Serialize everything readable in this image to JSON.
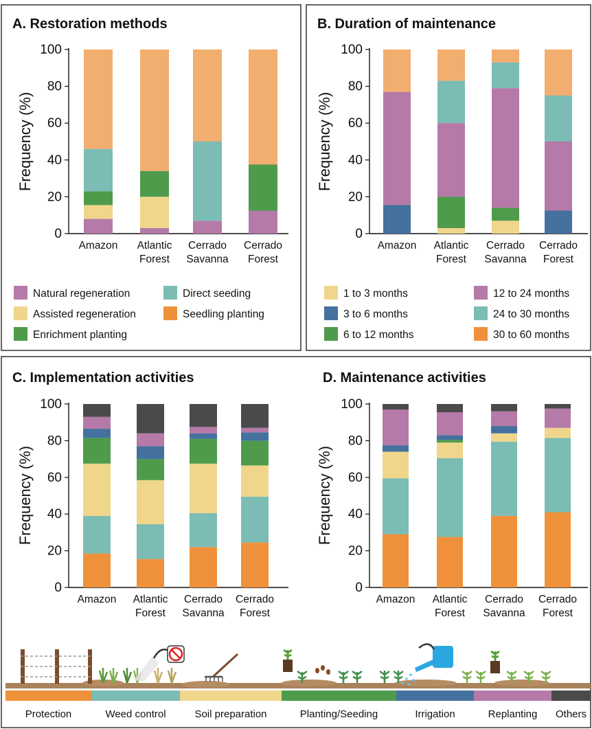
{
  "colors": {
    "natural_regeneration": "#b57aa8",
    "assisted_regeneration": "#efd68b",
    "enrichment_planting": "#4e9b4c",
    "direct_seeding": "#7bbcb4",
    "seedling_planting": "#f2ae6f",
    "m_1_3": "#efd68b",
    "m_3_6": "#44719e",
    "m_6_12": "#4e9b4c",
    "m_12_24": "#b57aa8",
    "m_24_30": "#7bbcb4",
    "m_30_60": "#f2ae6f",
    "protection": "#ef913a",
    "weed_control": "#7bbcb4",
    "soil_preparation": "#efd68b",
    "planting_seeding": "#4e9b4c",
    "irrigation": "#44719e",
    "replanting": "#b57aa8",
    "others": "#4a4a4a"
  },
  "chart_data": [
    {
      "type": "bar",
      "stacked": true,
      "title": "A. Restoration methods",
      "ylabel": "Frequency (%)",
      "ylim": [
        0,
        100
      ],
      "yticks": [
        "0",
        "20",
        "40",
        "60",
        "80",
        "100"
      ],
      "categories": [
        [
          "Amazon"
        ],
        [
          "Atlantic",
          "Forest"
        ],
        [
          "Cerrado",
          "Savanna"
        ],
        [
          "Cerrado",
          "Forest"
        ]
      ],
      "series": [
        {
          "name": "Natural regeneration",
          "color_key": "natural_regeneration",
          "values": [
            8,
            3,
            7,
            12.5
          ]
        },
        {
          "name": "Assisted regeneration",
          "color_key": "assisted_regeneration",
          "values": [
            7.5,
            17,
            0,
            0
          ]
        },
        {
          "name": "Enrichment planting",
          "color_key": "enrichment_planting",
          "values": [
            7.5,
            14,
            0,
            25
          ]
        },
        {
          "name": "Direct seeding",
          "color_key": "direct_seeding",
          "values": [
            23,
            0,
            43,
            0
          ]
        },
        {
          "name": "Seedling planting",
          "color_key": "seedling_planting",
          "values": [
            54,
            66,
            50,
            62.5
          ]
        }
      ],
      "legend": {
        "placement": "bottom",
        "items": [
          {
            "label": "Natural regeneration",
            "color_key": "natural_regeneration"
          },
          {
            "label": "Direct seeding",
            "color_key": "direct_seeding"
          },
          {
            "label": "Assisted regeneration",
            "color_key": "assisted_regeneration"
          },
          {
            "label": "Seedling planting",
            "color_key": "protection"
          },
          {
            "label": "Enrichment planting",
            "color_key": "enrichment_planting"
          }
        ]
      }
    },
    {
      "type": "bar",
      "stacked": true,
      "title": "B. Duration of maintenance",
      "ylabel": "Frequency (%)",
      "ylim": [
        0,
        100
      ],
      "yticks": [
        "0",
        "20",
        "40",
        "60",
        "80",
        "100"
      ],
      "categories": [
        [
          "Amazon"
        ],
        [
          "Atlantic",
          "Forest"
        ],
        [
          "Cerrado",
          "Savanna"
        ],
        [
          "Cerrado",
          "Forest"
        ]
      ],
      "series": [
        {
          "name": "1 to 3 months",
          "color_key": "m_1_3",
          "values": [
            0,
            3,
            7,
            0
          ]
        },
        {
          "name": "3 to 6 months",
          "color_key": "m_3_6",
          "values": [
            15.5,
            0,
            0,
            12.5
          ]
        },
        {
          "name": "6 to 12 months",
          "color_key": "m_6_12",
          "values": [
            0,
            17,
            7,
            0
          ]
        },
        {
          "name": "12 to 24 months",
          "color_key": "m_12_24",
          "values": [
            61.5,
            40,
            65,
            37.5
          ]
        },
        {
          "name": "24 to 30 months",
          "color_key": "m_24_30",
          "values": [
            0,
            23,
            14,
            25
          ]
        },
        {
          "name": "30 to 60 months",
          "color_key": "m_30_60",
          "values": [
            23,
            17,
            7,
            25
          ]
        }
      ],
      "legend": {
        "placement": "bottom",
        "items": [
          {
            "label": "1 to 3 months",
            "color_key": "m_1_3"
          },
          {
            "label": "12 to 24 months",
            "color_key": "m_12_24"
          },
          {
            "label": "3 to 6 months",
            "color_key": "m_3_6"
          },
          {
            "label": "24 to 30 months",
            "color_key": "m_24_30"
          },
          {
            "label": "6 to 12 months",
            "color_key": "m_6_12"
          },
          {
            "label": "30 to 60 months",
            "color_key": "protection"
          }
        ]
      }
    },
    {
      "type": "bar",
      "stacked": true,
      "title": "C. Implementation activities",
      "ylabel": "Frequency (%)",
      "ylim": [
        0,
        100
      ],
      "yticks": [
        "0",
        "20",
        "40",
        "60",
        "80",
        "100"
      ],
      "categories": [
        [
          "Amazon"
        ],
        [
          "Atlantic",
          "Forest"
        ],
        [
          "Cerrado",
          "Savanna"
        ],
        [
          "Cerrado",
          "Forest"
        ]
      ],
      "series": [
        {
          "name": "Protection",
          "color_key": "protection",
          "values": [
            18.5,
            15.5,
            22,
            24.5
          ]
        },
        {
          "name": "Weed control",
          "color_key": "weed_control",
          "values": [
            20.5,
            19,
            18.5,
            25
          ]
        },
        {
          "name": "Soil preparation",
          "color_key": "soil_preparation",
          "values": [
            28.5,
            24,
            27,
            17
          ]
        },
        {
          "name": "Planting/Seeding",
          "color_key": "planting_seeding",
          "values": [
            14,
            11.5,
            13.5,
            13.5
          ]
        },
        {
          "name": "Irrigation",
          "color_key": "irrigation",
          "values": [
            5,
            7,
            3,
            4.5
          ]
        },
        {
          "name": "Replanting",
          "color_key": "replanting",
          "values": [
            6.5,
            7,
            3.5,
            2.5
          ]
        },
        {
          "name": "Others",
          "color_key": "others",
          "values": [
            7,
            16,
            12.5,
            13
          ]
        }
      ]
    },
    {
      "type": "bar",
      "stacked": true,
      "title": "D. Maintenance activities",
      "ylabel": "Frequency (%)",
      "ylim": [
        0,
        100
      ],
      "yticks": [
        "0",
        "20",
        "40",
        "60",
        "80",
        "100"
      ],
      "categories": [
        [
          "Amazon"
        ],
        [
          "Atlantic",
          "Forest"
        ],
        [
          "Cerrado",
          "Savanna"
        ],
        [
          "Cerrado",
          "Forest"
        ]
      ],
      "series": [
        {
          "name": "Protection",
          "color_key": "protection",
          "values": [
            29,
            27.5,
            39,
            41
          ]
        },
        {
          "name": "Weed control",
          "color_key": "weed_control",
          "values": [
            30.5,
            43,
            40.5,
            40.5
          ]
        },
        {
          "name": "Soil preparation",
          "color_key": "soil_preparation",
          "values": [
            14.5,
            8.5,
            4.5,
            5.5
          ]
        },
        {
          "name": "Planting/Seeding",
          "color_key": "planting_seeding",
          "values": [
            0,
            1.5,
            0,
            0
          ]
        },
        {
          "name": "Irrigation",
          "color_key": "irrigation",
          "values": [
            3.5,
            2.5,
            4,
            0
          ]
        },
        {
          "name": "Replanting",
          "color_key": "replanting",
          "values": [
            19.5,
            12.5,
            8,
            10.5
          ]
        },
        {
          "name": "Others",
          "color_key": "others",
          "values": [
            3,
            4.5,
            4,
            2.5
          ]
        }
      ]
    }
  ],
  "activities_strip": [
    {
      "label": "Protection",
      "color_key": "protection"
    },
    {
      "label": "Weed control",
      "color_key": "weed_control"
    },
    {
      "label": "Soil preparation",
      "color_key": "soil_preparation"
    },
    {
      "label": "Planting/Seeding",
      "color_key": "planting_seeding"
    },
    {
      "label": "Irrigation",
      "color_key": "irrigation"
    },
    {
      "label": "Replanting",
      "color_key": "replanting"
    },
    {
      "label": "Others",
      "color_key": "others"
    }
  ]
}
